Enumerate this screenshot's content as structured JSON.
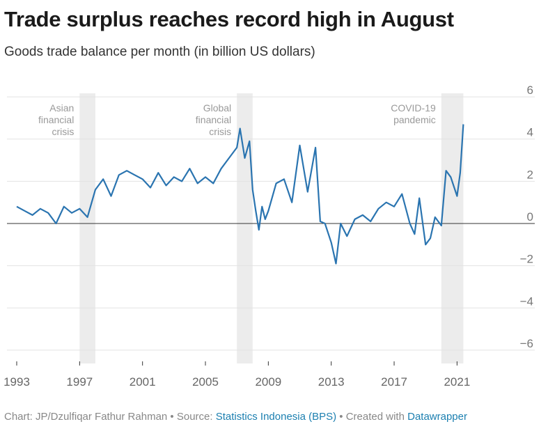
{
  "chart_data": {
    "type": "line",
    "title": "Trade surplus reaches record high in August",
    "subtitle": "Goods trade balance per month (in billion US dollars)",
    "x_ticks": [
      "1993",
      "1997",
      "2001",
      "2005",
      "2009",
      "2013",
      "2017",
      "2021"
    ],
    "y_ticks": [
      "6",
      "4",
      "2",
      "0",
      "−2",
      "−4",
      "−6"
    ],
    "y_tick_values": [
      6,
      4,
      2,
      0,
      -2,
      -4,
      -6
    ],
    "ylim": [
      -6.3,
      6.3
    ],
    "xlim": [
      1993.0,
      2025.5
    ],
    "grid": true,
    "line_color": "#2a74b0",
    "shade_color": "#ececec",
    "shaded_periods": [
      {
        "label": [
          "Asian",
          "financial",
          "crisis"
        ],
        "start": 1997.0,
        "end": 1998.0
      },
      {
        "label": [
          "Global",
          "financial",
          "crisis"
        ],
        "start": 2007.0,
        "end": 2008.0
      },
      {
        "label": [
          "COVID-19",
          "pandemic"
        ],
        "start": 2020.0,
        "end": 2021.4
      }
    ],
    "series": [
      {
        "x": [
          1993.0,
          1993.5,
          1994.0,
          1994.5,
          1995.0,
          1995.5,
          1996.0,
          1996.5,
          1997.0,
          1997.5,
          1998.0,
          1998.5,
          1999.0,
          1999.5,
          2000.0,
          2000.5,
          2001.0,
          2001.5,
          2002.0,
          2002.5,
          2003.0,
          2003.5,
          2004.0,
          2004.5,
          2005.0,
          2005.5,
          2006.0,
          2006.5,
          2007.0,
          2007.2,
          2007.5,
          2007.8,
          2008.0,
          2008.2,
          2008.4,
          2008.6,
          2008.8,
          2009.0,
          2009.5,
          2010.0,
          2010.5,
          2011.0,
          2011.5,
          2012.0,
          2012.3,
          2012.6,
          2013.0,
          2013.3,
          2013.6,
          2014.0,
          2014.5,
          2015.0,
          2015.5,
          2016.0,
          2016.5,
          2017.0,
          2017.5,
          2018.0,
          2018.3,
          2018.6,
          2019.0,
          2019.3,
          2019.6,
          2020.0,
          2020.3,
          2020.6,
          2021.0,
          2021.2,
          2021.4
        ],
        "y": [
          0.8,
          0.6,
          0.4,
          0.7,
          0.5,
          0.0,
          0.8,
          0.5,
          0.7,
          0.3,
          1.6,
          2.1,
          1.3,
          2.3,
          2.5,
          2.3,
          2.1,
          1.7,
          2.4,
          1.8,
          2.2,
          2.0,
          2.6,
          1.9,
          2.2,
          1.9,
          2.6,
          3.1,
          3.6,
          4.5,
          3.1,
          3.9,
          1.6,
          0.6,
          -0.3,
          0.8,
          0.2,
          0.6,
          1.9,
          2.1,
          1.0,
          3.7,
          1.5,
          3.6,
          0.1,
          0.0,
          -0.9,
          -1.9,
          0.0,
          -0.6,
          0.2,
          0.4,
          0.1,
          0.7,
          1.0,
          0.8,
          1.4,
          0.0,
          -0.5,
          1.2,
          -1.0,
          -0.7,
          0.3,
          -0.1,
          2.5,
          2.2,
          1.3,
          2.4,
          4.7
        ]
      }
    ],
    "zero_line": 0
  },
  "footer": {
    "prefix": "Chart: JP/Dzulfiqar Fathur Rahman • Source: ",
    "source": "Statistics Indonesia (BPS)",
    "middle": " • Created with ",
    "tool": "Datawrapper"
  }
}
